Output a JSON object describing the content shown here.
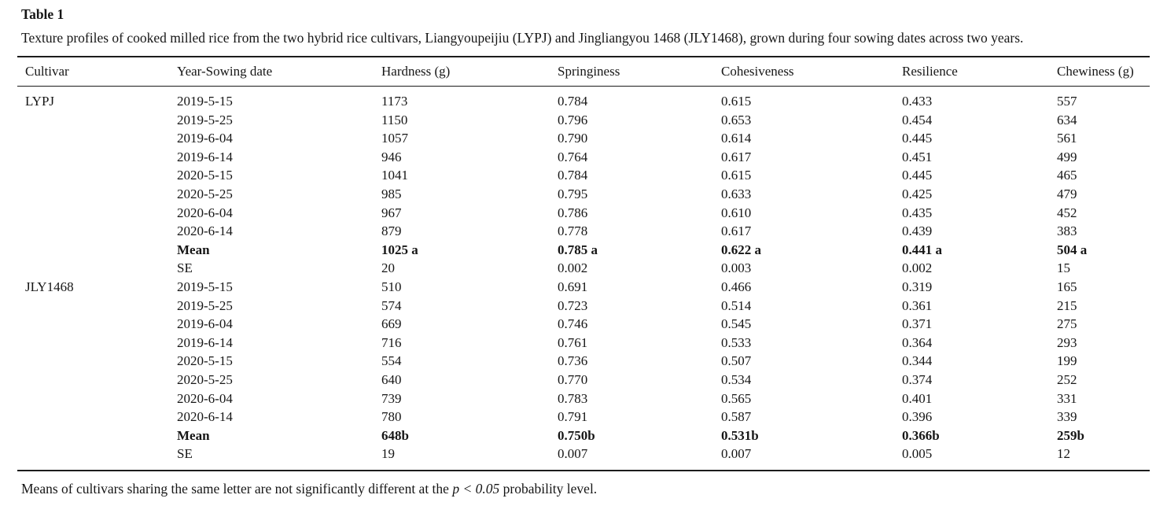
{
  "page": {
    "title": "Table 1",
    "caption": "Texture profiles of cooked milled rice from the two hybrid rice cultivars, Liangyoupeijiu (LYPJ) and Jingliangyou 1468 (JLY1468), grown during four sowing dates across two years.",
    "footnote_prefix": "Means of cultivars sharing the same letter are not significantly different at the ",
    "footnote_italic": "p < 0.05",
    "footnote_suffix": " probability level."
  },
  "table": {
    "columns": [
      "Cultivar",
      "Year-Sowing date",
      "Hardness (g)",
      "Springiness",
      "Cohesiveness",
      "Resilience",
      "Chewiness (g)"
    ],
    "rows": [
      {
        "bold": false,
        "cells": [
          "LYPJ",
          "2019-5-15",
          "1173",
          "0.784",
          "0.615",
          "0.433",
          "557"
        ]
      },
      {
        "bold": false,
        "cells": [
          "",
          "2019-5-25",
          "1150",
          "0.796",
          "0.653",
          "0.454",
          "634"
        ]
      },
      {
        "bold": false,
        "cells": [
          "",
          "2019-6-04",
          "1057",
          "0.790",
          "0.614",
          "0.445",
          "561"
        ]
      },
      {
        "bold": false,
        "cells": [
          "",
          "2019-6-14",
          "946",
          "0.764",
          "0.617",
          "0.451",
          "499"
        ]
      },
      {
        "bold": false,
        "cells": [
          "",
          "2020-5-15",
          "1041",
          "0.784",
          "0.615",
          "0.445",
          "465"
        ]
      },
      {
        "bold": false,
        "cells": [
          "",
          "2020-5-25",
          "985",
          "0.795",
          "0.633",
          "0.425",
          "479"
        ]
      },
      {
        "bold": false,
        "cells": [
          "",
          "2020-6-04",
          "967",
          "0.786",
          "0.610",
          "0.435",
          "452"
        ]
      },
      {
        "bold": false,
        "cells": [
          "",
          "2020-6-14",
          "879",
          "0.778",
          "0.617",
          "0.439",
          "383"
        ]
      },
      {
        "bold": true,
        "cells": [
          "",
          "Mean",
          "1025 a",
          "0.785 a",
          "0.622 a",
          "0.441 a",
          "504 a"
        ]
      },
      {
        "bold": false,
        "cells": [
          "",
          "SE",
          "20",
          "0.002",
          "0.003",
          "0.002",
          "15"
        ]
      },
      {
        "bold": false,
        "cells": [
          "JLY1468",
          "2019-5-15",
          "510",
          "0.691",
          "0.466",
          "0.319",
          "165"
        ]
      },
      {
        "bold": false,
        "cells": [
          "",
          "2019-5-25",
          "574",
          "0.723",
          "0.514",
          "0.361",
          "215"
        ]
      },
      {
        "bold": false,
        "cells": [
          "",
          "2019-6-04",
          "669",
          "0.746",
          "0.545",
          "0.371",
          "275"
        ]
      },
      {
        "bold": false,
        "cells": [
          "",
          "2019-6-14",
          "716",
          "0.761",
          "0.533",
          "0.364",
          "293"
        ]
      },
      {
        "bold": false,
        "cells": [
          "",
          "2020-5-15",
          "554",
          "0.736",
          "0.507",
          "0.344",
          "199"
        ]
      },
      {
        "bold": false,
        "cells": [
          "",
          "2020-5-25",
          "640",
          "0.770",
          "0.534",
          "0.374",
          "252"
        ]
      },
      {
        "bold": false,
        "cells": [
          "",
          "2020-6-04",
          "739",
          "0.783",
          "0.565",
          "0.401",
          "331"
        ]
      },
      {
        "bold": false,
        "cells": [
          "",
          "2020-6-14",
          "780",
          "0.791",
          "0.587",
          "0.396",
          "339"
        ]
      },
      {
        "bold": true,
        "cells": [
          "",
          "Mean",
          "648b",
          "0.750b",
          "0.531b",
          "0.366b",
          "259b"
        ]
      },
      {
        "bold": false,
        "cells": [
          "",
          "SE",
          "19",
          "0.007",
          "0.007",
          "0.005",
          "12"
        ]
      }
    ]
  }
}
